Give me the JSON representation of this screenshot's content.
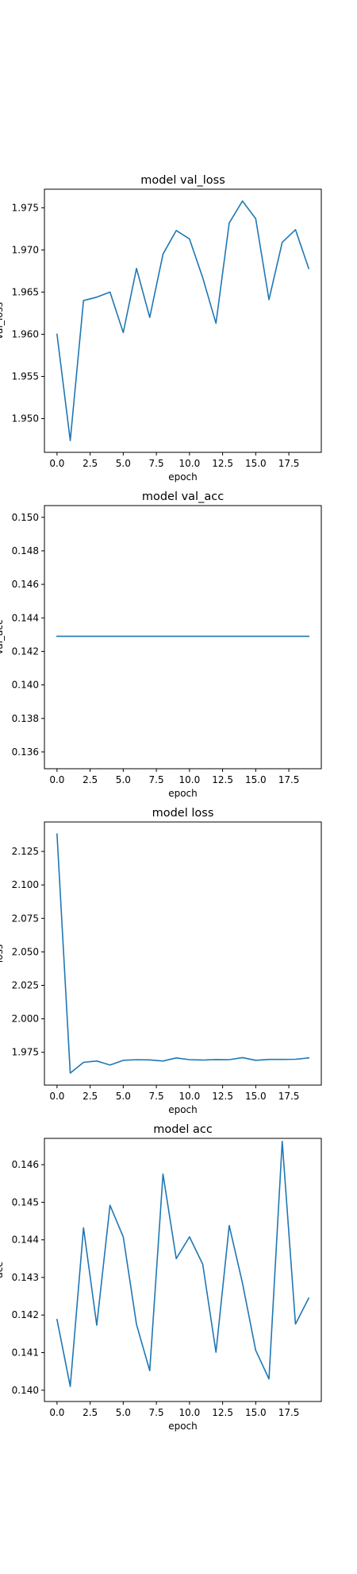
{
  "series_color": "#1f77b4",
  "chart_data": [
    {
      "type": "line",
      "title": "model val_loss",
      "xlabel": "epoch",
      "ylabel": "val_loss",
      "xlim": [
        -0.95,
        19.95
      ],
      "ylim": [
        1.946,
        1.9772
      ],
      "xticks": [
        0,
        2.5,
        5,
        7.5,
        10,
        12.5,
        15,
        17.5
      ],
      "xtick_labels": [
        "0.0",
        "2.5",
        "5.0",
        "7.5",
        "10.0",
        "12.5",
        "15.0",
        "17.5"
      ],
      "yticks": [
        1.95,
        1.955,
        1.96,
        1.965,
        1.97,
        1.975
      ],
      "ytick_labels": [
        "1.950",
        "1.955",
        "1.960",
        "1.965",
        "1.970",
        "1.975"
      ],
      "grid": false,
      "series": [
        {
          "x": [
            0,
            1,
            2,
            3,
            4,
            5,
            6,
            7,
            8,
            9,
            10,
            11,
            12,
            13,
            14,
            15,
            16,
            17,
            18,
            19
          ],
          "values": [
            1.96,
            1.9474,
            1.964,
            1.9644,
            1.965,
            1.9602,
            1.9678,
            1.962,
            1.9695,
            1.9723,
            1.9713,
            1.9667,
            1.9613,
            1.9732,
            1.9758,
            1.9737,
            1.9641,
            1.9709,
            1.9724,
            1.9678
          ]
        }
      ]
    },
    {
      "type": "line",
      "title": "model val_acc",
      "xlabel": "epoch",
      "ylabel": "val_acc",
      "xlim": [
        -0.95,
        19.95
      ],
      "ylim": [
        0.135,
        0.1507
      ],
      "xticks": [
        0,
        2.5,
        5,
        7.5,
        10,
        12.5,
        15,
        17.5
      ],
      "xtick_labels": [
        "0.0",
        "2.5",
        "5.0",
        "7.5",
        "10.0",
        "12.5",
        "15.0",
        "17.5"
      ],
      "yticks": [
        0.136,
        0.138,
        0.14,
        0.142,
        0.144,
        0.146,
        0.148,
        0.15
      ],
      "ytick_labels": [
        "0.136",
        "0.138",
        "0.140",
        "0.142",
        "0.144",
        "0.146",
        "0.148",
        "0.150"
      ],
      "grid": false,
      "series": [
        {
          "x": [
            0,
            1,
            2,
            3,
            4,
            5,
            6,
            7,
            8,
            9,
            10,
            11,
            12,
            13,
            14,
            15,
            16,
            17,
            18,
            19
          ],
          "values": [
            0.1429,
            0.1429,
            0.1429,
            0.1429,
            0.1429,
            0.1429,
            0.1429,
            0.1429,
            0.1429,
            0.1429,
            0.1429,
            0.1429,
            0.1429,
            0.1429,
            0.1429,
            0.1429,
            0.1429,
            0.1429,
            0.1429,
            0.1429
          ]
        }
      ]
    },
    {
      "type": "line",
      "title": "model loss",
      "xlabel": "epoch",
      "ylabel": "loss",
      "xlim": [
        -0.95,
        19.95
      ],
      "ylim": [
        1.9505,
        2.147
      ],
      "xticks": [
        0,
        2.5,
        5,
        7.5,
        10,
        12.5,
        15,
        17.5
      ],
      "xtick_labels": [
        "0.0",
        "2.5",
        "5.0",
        "7.5",
        "10.0",
        "12.5",
        "15.0",
        "17.5"
      ],
      "yticks": [
        1.975,
        2.0,
        2.025,
        2.05,
        2.075,
        2.1,
        2.125
      ],
      "ytick_labels": [
        "1.975",
        "2.000",
        "2.025",
        "2.050",
        "2.075",
        "2.100",
        "2.125"
      ],
      "grid": false,
      "series": [
        {
          "x": [
            0,
            1,
            2,
            3,
            4,
            5,
            6,
            7,
            8,
            9,
            10,
            11,
            12,
            13,
            14,
            15,
            16,
            17,
            18,
            19
          ],
          "values": [
            2.138,
            1.9595,
            1.9675,
            1.9685,
            1.9655,
            1.969,
            1.9695,
            1.9693,
            1.9685,
            1.9708,
            1.9695,
            1.9692,
            1.9696,
            1.9695,
            1.971,
            1.969,
            1.9697,
            1.9697,
            1.9698,
            1.9708
          ]
        }
      ]
    },
    {
      "type": "line",
      "title": "model acc",
      "xlabel": "epoch",
      "ylabel": "acc",
      "xlim": [
        -0.95,
        19.95
      ],
      "ylim": [
        0.1397,
        0.1467
      ],
      "xticks": [
        0,
        2.5,
        5,
        7.5,
        10,
        12.5,
        15,
        17.5
      ],
      "xtick_labels": [
        "0.0",
        "2.5",
        "5.0",
        "7.5",
        "10.0",
        "12.5",
        "15.0",
        "17.5"
      ],
      "yticks": [
        0.14,
        0.141,
        0.142,
        0.143,
        0.144,
        0.145,
        0.146
      ],
      "ytick_labels": [
        "0.140",
        "0.141",
        "0.142",
        "0.143",
        "0.144",
        "0.145",
        "0.146"
      ],
      "grid": false,
      "series": [
        {
          "x": [
            0,
            1,
            2,
            3,
            4,
            5,
            6,
            7,
            8,
            9,
            10,
            11,
            12,
            13,
            14,
            15,
            16,
            17,
            18,
            19
          ],
          "values": [
            0.14188,
            0.1401,
            0.14432,
            0.14173,
            0.14492,
            0.14408,
            0.14175,
            0.14052,
            0.14575,
            0.1435,
            0.14408,
            0.14335,
            0.14101,
            0.14438,
            0.14285,
            0.14106,
            0.1403,
            0.14662,
            0.14176,
            0.14245
          ]
        }
      ]
    }
  ]
}
